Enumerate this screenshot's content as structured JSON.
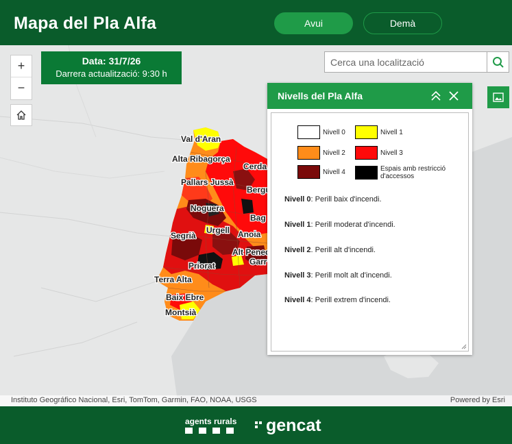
{
  "header": {
    "title": "Mapa del Pla Alfa",
    "tabs": [
      {
        "label": "Avui",
        "active": true
      },
      {
        "label": "Demà",
        "active": false
      }
    ]
  },
  "map_controls": {
    "zoom_in": "+",
    "zoom_out": "−"
  },
  "date_box": {
    "date_label": "Data:",
    "date_value": "31/7/26",
    "update_text": "Darrera actualització: 9:30 h"
  },
  "search": {
    "placeholder": "Cerca una localització"
  },
  "map_labels": [
    "Val d'Aran",
    "Alta Ribagorça",
    "Cerda",
    "Pallars Jussà",
    "Bergu",
    "Noguera",
    "Bag",
    "Urgell",
    "Segrià",
    "Anoia",
    "Alt Pened",
    "Garr",
    "Priorat",
    "Terra Alta",
    "Baix Ebre",
    "Montsià"
  ],
  "panel": {
    "title": "Nivells del Pla Alfa",
    "legend": [
      {
        "label": "Nivell 0",
        "color": "#ffffff"
      },
      {
        "label": "Nivell 1",
        "color": "#ffff00"
      },
      {
        "label": "Nivell 2",
        "color": "#ff8c1a"
      },
      {
        "label": "Nivell 3",
        "color": "#ff0a0a"
      },
      {
        "label": "Nivell 4",
        "color": "#7a0a0a"
      },
      {
        "label": "Espais amb restricció d'accessos",
        "color": "#000000"
      }
    ],
    "descriptions": [
      {
        "level": "Nivell 0",
        "text": ": Perill baix d'incendi."
      },
      {
        "level": "Nivell 1",
        "text": ": Perill moderat d'incendi."
      },
      {
        "level": "Nivell 2",
        "text": ". Perill alt d'incendi."
      },
      {
        "level": "Nivell 3",
        "text": ": Perill molt alt d'incendi."
      },
      {
        "level": "Nivell 4",
        "text": ": Perill extrem d'incendi."
      }
    ]
  },
  "attribution": {
    "left": "Instituto Geográfico Nacional, Esri, TomTom, Garmin, FAO, NOAA, USGS",
    "right": "Powered by Esri"
  },
  "footer": {
    "agents": "agents rurals",
    "gencat": "gencat"
  },
  "colors": {
    "header_bg": "#0a5c2b",
    "accent": "#1f9b48",
    "date_bg": "#0a7a35"
  }
}
